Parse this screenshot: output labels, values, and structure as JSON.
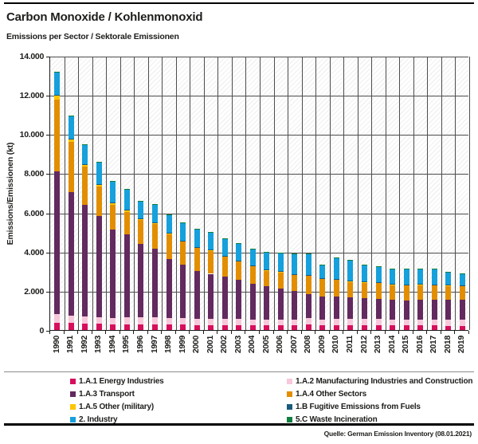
{
  "header": {
    "title": "Carbon Monoxide / Kohlenmonoxid",
    "subtitle": "Emissions per Sector / Sektorale Emissionen"
  },
  "footer": {
    "source": "Quelle: German Emission Inventory (08.01.2021)"
  },
  "chart_data": {
    "type": "bar",
    "stacked": true,
    "title": "Carbon Monoxide / Kohlenmonoxid",
    "subtitle": "Emissions per Sector / Sektorale Emissionen",
    "xlabel": "",
    "ylabel": "Emissions/Emissionen (kt)",
    "ylim": [
      0,
      14000
    ],
    "ytick_step": 2000,
    "ytick_labels": [
      "0",
      "2.000",
      "4.000",
      "6.000",
      "8.000",
      "10.000",
      "12.000",
      "14.000"
    ],
    "grid": true,
    "background_hatch": true,
    "legend_position": "bottom",
    "gridline_color": "#4d4d4d",
    "axis_color": "#1a1a1a",
    "categories": [
      "1990",
      "1991",
      "1992",
      "1993",
      "1994",
      "1995",
      "1996",
      "1997",
      "1998",
      "1999",
      "2000",
      "2001",
      "2002",
      "2003",
      "2004",
      "2005",
      "2006",
      "2007",
      "2008",
      "2009",
      "2010",
      "2011",
      "2012",
      "2013",
      "2014",
      "2015",
      "2016",
      "2017",
      "2018",
      "2019"
    ],
    "series": [
      {
        "id": "1A1",
        "name": "1.A.1 Energy Industries",
        "color": "#d60f5c",
        "values": [
          380,
          350,
          330,
          310,
          290,
          300,
          300,
          290,
          280,
          270,
          260,
          255,
          250,
          250,
          245,
          240,
          235,
          230,
          273,
          240,
          244,
          240,
          238,
          240,
          235,
          232,
          230,
          228,
          215,
          204
        ]
      },
      {
        "id": "1A2",
        "name": "1.A.2 Manufacturing Industries and Construction",
        "color": "#f7c7da",
        "values": [
          440,
          400,
          380,
          360,
          340,
          360,
          360,
          350,
          340,
          330,
          320,
          315,
          310,
          305,
          300,
          295,
          290,
          285,
          338,
          300,
          326,
          320,
          315,
          318,
          310,
          310,
          312,
          310,
          300,
          313
        ]
      },
      {
        "id": "1A3",
        "name": "1.A.3 Transport",
        "color": "#622a5e",
        "values": [
          7260,
          6285,
          5699,
          5168,
          4491,
          4229,
          3740,
          3500,
          3006,
          2728,
          2447,
          2300,
          2157,
          1995,
          1835,
          1695,
          1595,
          1485,
          1222,
          1180,
          1128,
          1100,
          1060,
          1030,
          1000,
          953,
          990,
          1000,
          1030,
          1019
        ]
      },
      {
        "id": "1A4",
        "name": "1.A.4 Other Sectors",
        "color": "#e28e00",
        "values": [
          3670,
          2560,
          1915,
          1482,
          1264,
          1136,
          1198,
          1270,
          1275,
          1176,
          1163,
          1180,
          1040,
          952,
          900,
          822,
          850,
          830,
          950,
          900,
          881,
          830,
          840,
          850,
          780,
          815,
          800,
          780,
          740,
          733
        ]
      },
      {
        "id": "1A5",
        "name": "1.A.5 Other (military)",
        "color": "#fdc500",
        "values": [
          200,
          150,
          120,
          110,
          100,
          96,
          90,
          85,
          70,
          60,
          50,
          40,
          35,
          30,
          25,
          20,
          18,
          16,
          15,
          12,
          12,
          10,
          10,
          10,
          10,
          10,
          8,
          8,
          8,
          8
        ]
      },
      {
        "id": "1B",
        "name": "1.B Fugitive Emissions from Fuels",
        "color": "#1a5a7e",
        "values": [
          40,
          35,
          30,
          25,
          20,
          18,
          15,
          15,
          12,
          12,
          10,
          10,
          10,
          10,
          10,
          10,
          10,
          10,
          10,
          8,
          8,
          8,
          8,
          8,
          8,
          8,
          8,
          8,
          8,
          8
        ]
      },
      {
        "id": "2",
        "name": "2. Industry",
        "color": "#16a0dc",
        "values": [
          1200,
          1140,
          1000,
          1124,
          1094,
          1053,
          901,
          934,
          921,
          918,
          904,
          894,
          880,
          890,
          847,
          890,
          934,
          1034,
          1080,
          698,
          1084,
          1080,
          867,
          792,
          770,
          810,
          790,
          779,
          647,
          593
        ]
      },
      {
        "id": "5C",
        "name": "5.C Waste Incineration",
        "color": "#107f3f",
        "values": [
          10,
          10,
          6,
          6,
          6,
          6,
          6,
          6,
          6,
          6,
          6,
          6,
          8,
          8,
          8,
          8,
          8,
          10,
          12,
          12,
          12,
          12,
          12,
          12,
          12,
          12,
          12,
          12,
          12,
          12
        ]
      }
    ]
  }
}
